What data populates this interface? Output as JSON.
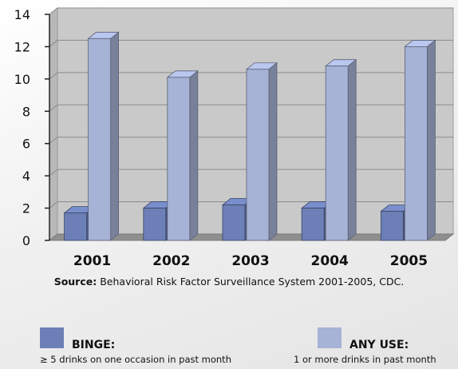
{
  "chart_data": {
    "type": "bar",
    "categories": [
      "2001",
      "2002",
      "2003",
      "2004",
      "2005"
    ],
    "series": [
      {
        "name": "BINGE",
        "color": "#6c7fb6",
        "values": [
          1.7,
          2.0,
          2.2,
          2.0,
          1.8
        ]
      },
      {
        "name": "ANY USE",
        "color": "#a6b2d6",
        "values": [
          12.5,
          10.1,
          10.6,
          10.8,
          12.0
        ]
      }
    ],
    "y_ticks": [
      "0",
      "2",
      "4",
      "6",
      "8",
      "10",
      "12",
      "14"
    ],
    "ylim": [
      0,
      14
    ],
    "grid": true
  },
  "source": {
    "label": "Source:",
    "text": "Behavioral Risk Factor Surveillance System 2001-2005, CDC."
  },
  "legend": [
    {
      "title": "BINGE:",
      "description": "≥ 5 drinks on one occasion in past month",
      "color": "#6c7fb6"
    },
    {
      "title": "ANY USE:",
      "description": "1 or more drinks in past month",
      "color": "#a6b2d6"
    }
  ]
}
